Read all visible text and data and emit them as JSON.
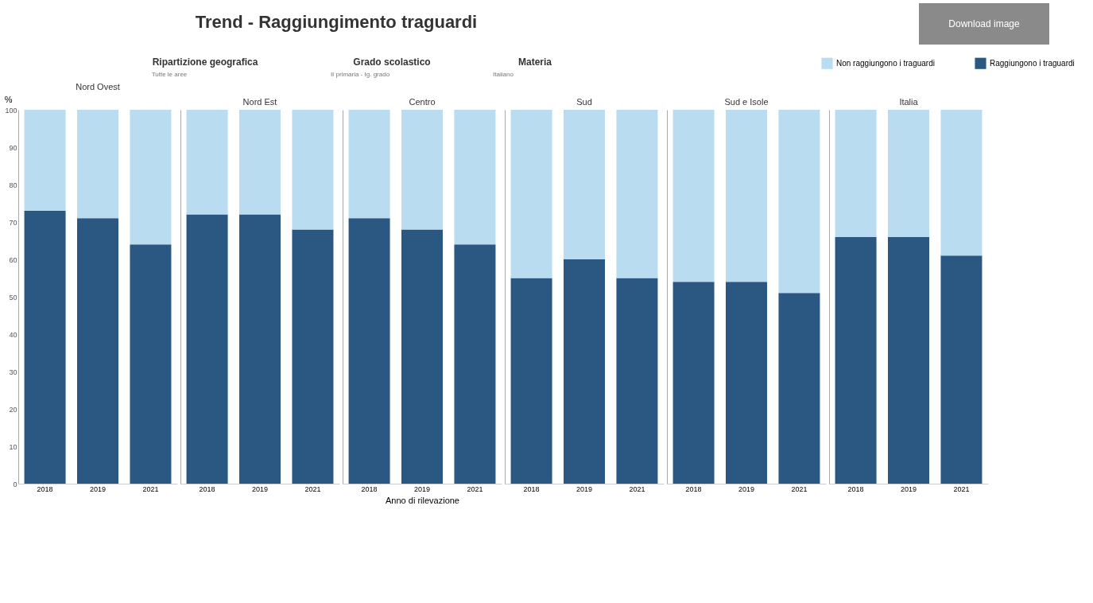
{
  "chart_data": [
    {
      "type": "bar",
      "stacked": true,
      "title": "Nord Ovest",
      "ylabel": "%",
      "categories": [
        "2018",
        "2019",
        "2021"
      ],
      "ylim": [
        0,
        100
      ],
      "yticks": [
        0,
        10,
        20,
        30,
        40,
        50,
        60,
        70,
        80,
        90,
        100
      ],
      "annotations": [
        "Trend - Raggiungimento traguardi",
        "Ripartizione geografica",
        "Tutte le aree",
        "Grado scolastico",
        "II primaria - Ig. grado",
        "Materia",
        "Italiano",
        "Download image"
      ],
      "series": [
        {
          "color": "#2b5783",
          "values": [
            73,
            71,
            64
          ]
        },
        {
          "color": "#b9dcf0",
          "values": [
            27,
            29,
            36
          ]
        }
      ]
    },
    {
      "type": "bar",
      "stacked": true,
      "title": "Nord Est",
      "categories": [
        "2018",
        "2019",
        "2021"
      ],
      "ylim": [
        0,
        100
      ],
      "tick_labels": "x",
      "series": [
        {
          "color": "#2b5783",
          "values": [
            72,
            72,
            68
          ]
        },
        {
          "color": "#b9dcf0",
          "values": [
            28,
            28,
            32
          ]
        }
      ]
    },
    {
      "type": "bar",
      "stacked": true,
      "title": "Centro",
      "xlabel": "Anno di rilevazione",
      "categories": [
        "2018",
        "2019",
        "2021"
      ],
      "ylim": [
        0,
        100
      ],
      "tick_labels": "x",
      "series": [
        {
          "color": "#2b5783",
          "values": [
            71,
            68,
            64
          ]
        },
        {
          "color": "#b9dcf0",
          "values": [
            29,
            32,
            36
          ]
        }
      ]
    },
    {
      "type": "bar",
      "stacked": true,
      "title": "Sud",
      "categories": [
        "2018",
        "2019",
        "2021"
      ],
      "ylim": [
        0,
        100
      ],
      "tick_labels": "x",
      "series": [
        {
          "color": "#2b5783",
          "values": [
            55,
            60,
            55
          ]
        },
        {
          "color": "#b9dcf0",
          "values": [
            45,
            40,
            45
          ]
        }
      ]
    },
    {
      "type": "bar",
      "stacked": true,
      "title": "Sud e Isole",
      "categories": [
        "2018",
        "2019",
        "2021"
      ],
      "ylim": [
        0,
        100
      ],
      "tick_labels": "x",
      "series": [
        {
          "color": "#2b5783",
          "values": [
            54,
            54,
            51
          ]
        },
        {
          "color": "#b9dcf0",
          "values": [
            46,
            46,
            49
          ]
        }
      ]
    },
    {
      "type": "bar",
      "stacked": true,
      "title": "Italia",
      "categories": [
        "2018",
        "2019",
        "2021"
      ],
      "ylim": [
        0,
        100
      ],
      "tick_labels": "x",
      "legend": "top right",
      "series": [
        {
          "name": "Raggiungono i traguardi",
          "color": "#2b5783",
          "values": [
            66,
            66,
            61
          ]
        },
        {
          "name": "Non raggiungono i traguardi",
          "color": "#b9dcf0",
          "values": [
            34,
            34,
            39
          ]
        }
      ]
    }
  ]
}
